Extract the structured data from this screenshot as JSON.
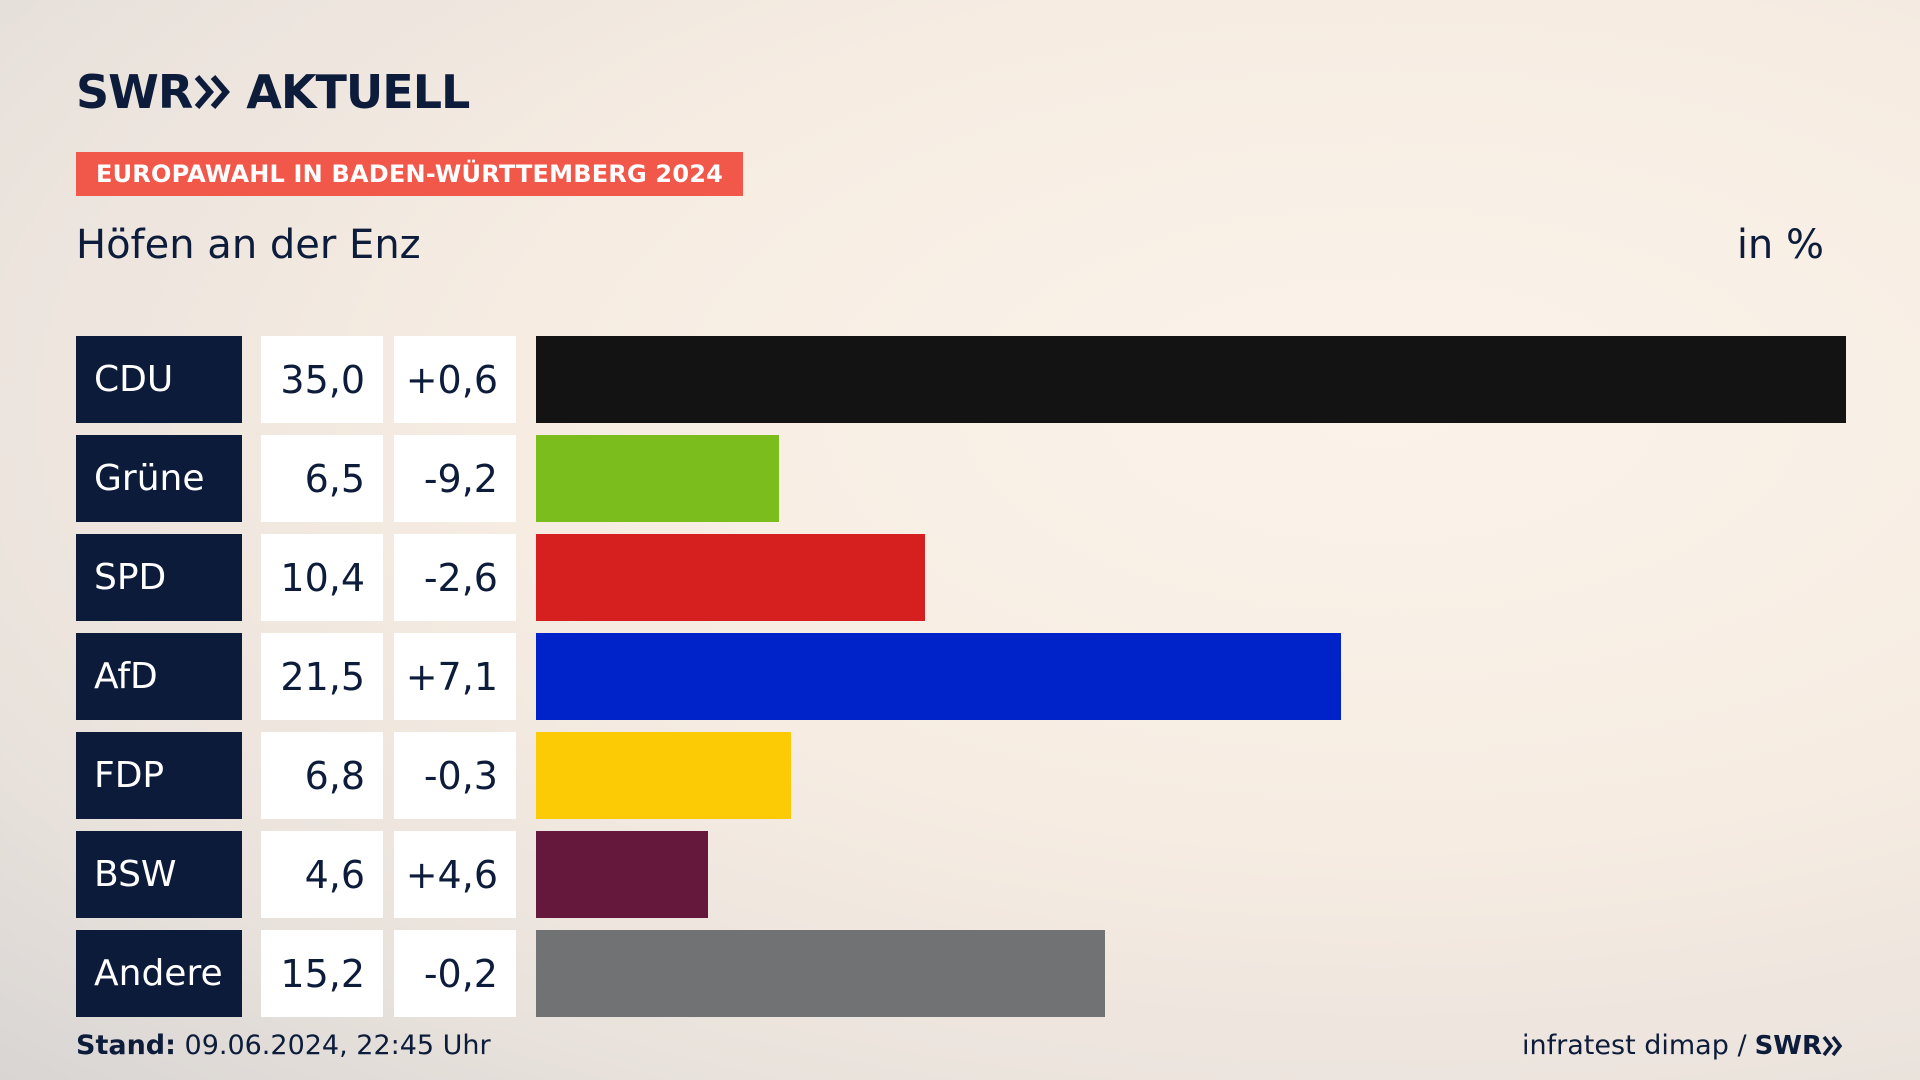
{
  "brand": {
    "name": "SWR",
    "section": "AKTUELL"
  },
  "tag": "EUROPAWAHL IN BADEN-WÜRTTEMBERG 2024",
  "place": "Höfen an der Enz",
  "unit": "in %",
  "footer": {
    "stand_label": "Stand:",
    "stand_value": "09.06.2024, 22:45 Uhr",
    "source": "infratest dimap /",
    "source_brand": "SWR"
  },
  "chart_data": {
    "type": "bar",
    "orientation": "horizontal",
    "categories": [
      "CDU",
      "Grüne",
      "SPD",
      "AfD",
      "FDP",
      "BSW",
      "Andere"
    ],
    "values": [
      35.0,
      6.5,
      10.4,
      21.5,
      6.8,
      4.6,
      15.2
    ],
    "value_labels": [
      "35,0",
      "6,5",
      "10,4",
      "21,5",
      "6,8",
      "4,6",
      "15,2"
    ],
    "diff_labels": [
      "+0,6",
      "-9,2",
      "-2,6",
      "+7,1",
      "-0,3",
      "+4,6",
      "-0,2"
    ],
    "colors": [
      "#131313",
      "#7abd1c",
      "#d61f1f",
      "#0022c9",
      "#fdcb05",
      "#66183c",
      "#717273"
    ],
    "xlim": [
      0,
      35.0
    ]
  }
}
